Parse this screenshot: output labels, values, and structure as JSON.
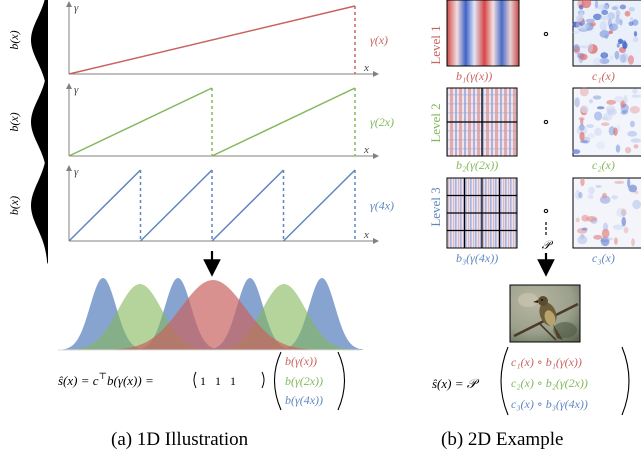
{
  "captions": {
    "a": "(a) 1D Illustration",
    "b": "(b) 2D Example"
  },
  "axis": {
    "y_symbol": "γ",
    "x_symbol": "x",
    "density_label": "b(x)"
  },
  "rows_1d": [
    {
      "label": "γ(x)",
      "color": "#c8635e",
      "periods": 1
    },
    {
      "label": "γ(2x)",
      "color": "#82b85a",
      "periods": 2
    },
    {
      "label": "γ(4x)",
      "color": "#5f86c0",
      "periods": 4
    }
  ],
  "formula_1d": {
    "lhs": "ŝ(x) = c",
    "sup": "⊤",
    "mid": "b(γ(x)) = ",
    "row_vector": "1   1   1",
    "col": [
      "b(γ(x))",
      "b(γ(2x))",
      "b(γ(4x))"
    ]
  },
  "levels_2d": [
    {
      "level": "Level 1",
      "b_label": "b₁(γ(x))",
      "c_label": "c₁(x)",
      "color": "#c8635e"
    },
    {
      "level": "Level 2",
      "b_label": "b₂(γ(2x))",
      "c_label": "c₂(x)",
      "color": "#82b85a"
    },
    {
      "level": "Level 3",
      "b_label": "b₃(γ(4x))",
      "c_label": "c₃(x)",
      "color": "#5f86c0"
    }
  ],
  "operator_2d": {
    "compose": "∘",
    "proj": "𝒫"
  },
  "formula_2d": {
    "lhs": "ŝ(x) = 𝒫",
    "col": [
      "c₁(x) ∘ b₁(γ(x))",
      "c₂(x) ∘ b₂(γ(2x))",
      "c₃(x) ∘ b₃(γ(4x))"
    ]
  }
}
